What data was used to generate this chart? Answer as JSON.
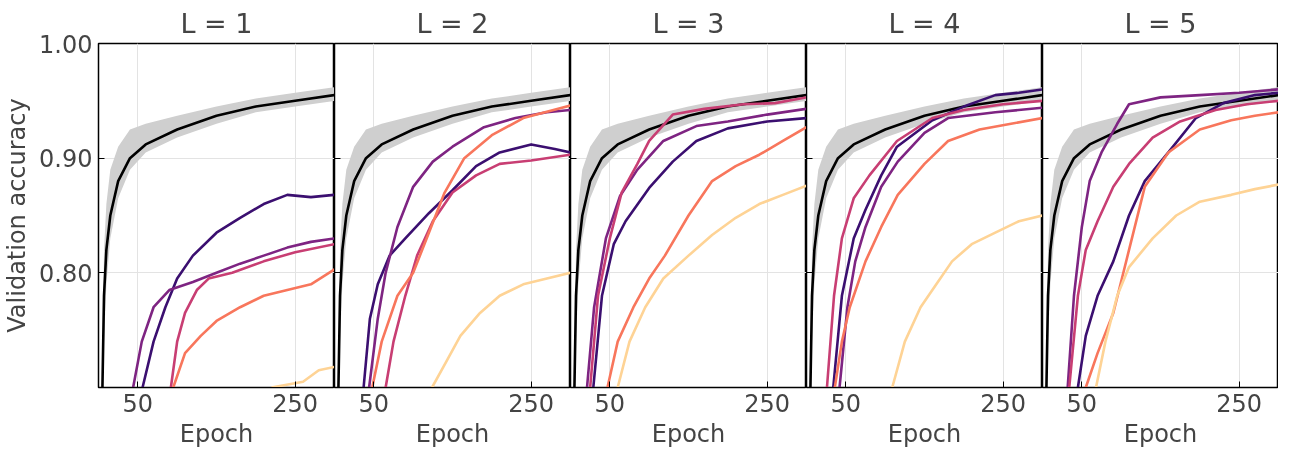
{
  "chart_data": [
    {
      "type": "line",
      "title": "L = 1",
      "xlabel": "Epoch",
      "ylabel": "Validation accuracy",
      "xlim": [
        0,
        300
      ],
      "xticks": [
        50,
        250
      ],
      "ylim": [
        0.7,
        1.0
      ],
      "yticks": [
        {
          "value": 0.8,
          "label": "0.80"
        },
        {
          "value": 0.9,
          "label": "0.90"
        },
        {
          "value": 1.0,
          "label": "1.00"
        }
      ],
      "grid": true,
      "series": [
        {
          "color": "#000000",
          "x": [
            5,
            7,
            10,
            15,
            25,
            40,
            60,
            100,
            150,
            200,
            250,
            300
          ],
          "values": [
            0.7,
            0.78,
            0.82,
            0.85,
            0.88,
            0.9,
            0.912,
            0.925,
            0.937,
            0.945,
            0.95,
            0.955
          ],
          "lower": [
            0.7,
            0.74,
            0.79,
            0.83,
            0.865,
            0.89,
            0.905,
            0.918,
            0.93,
            0.94,
            0.945,
            0.95
          ],
          "upper": [
            0.72,
            0.82,
            0.86,
            0.89,
            0.91,
            0.925,
            0.93,
            0.937,
            0.945,
            0.952,
            0.957,
            0.962
          ]
        },
        {
          "color": "#3b0f70",
          "x": [
            56,
            70,
            85,
            100,
            120,
            150,
            180,
            210,
            240,
            270,
            300
          ],
          "values": [
            0.7,
            0.74,
            0.77,
            0.795,
            0.815,
            0.835,
            0.848,
            0.86,
            0.868,
            0.866,
            0.868
          ]
        },
        {
          "color": "#7e2482",
          "x": [
            44,
            55,
            70,
            90,
            120,
            150,
            180,
            210,
            240,
            270,
            300
          ],
          "values": [
            0.7,
            0.74,
            0.77,
            0.785,
            0.792,
            0.8,
            0.808,
            0.815,
            0.822,
            0.827,
            0.83
          ]
        },
        {
          "color": "#c83e73",
          "x": [
            92,
            100,
            110,
            125,
            140,
            170,
            210,
            250,
            300
          ],
          "values": [
            0.7,
            0.74,
            0.765,
            0.785,
            0.795,
            0.8,
            0.81,
            0.818,
            0.825
          ]
        },
        {
          "color": "#f8765c",
          "x": [
            95,
            110,
            130,
            150,
            180,
            210,
            240,
            270,
            300
          ],
          "values": [
            0.7,
            0.73,
            0.745,
            0.758,
            0.77,
            0.78,
            0.785,
            0.79,
            0.803
          ]
        },
        {
          "color": "#fed395",
          "x": [
            220,
            260,
            280,
            300
          ],
          "values": [
            0.7,
            0.705,
            0.715,
            0.718
          ]
        }
      ]
    },
    {
      "type": "line",
      "title": "L = 2",
      "xlabel": "Epoch",
      "xlim": [
        0,
        300
      ],
      "xticks": [
        50,
        250
      ],
      "ylim": [
        0.7,
        1.0
      ],
      "yticks": [
        0.8,
        0.9,
        1.0
      ],
      "grid": true,
      "tick_labels": "x",
      "series": [
        {
          "color": "#000000",
          "x": [
            5,
            7,
            10,
            15,
            25,
            40,
            60,
            100,
            150,
            200,
            250,
            300
          ],
          "values": [
            0.7,
            0.78,
            0.82,
            0.85,
            0.88,
            0.9,
            0.912,
            0.925,
            0.937,
            0.945,
            0.95,
            0.955
          ],
          "lower": [
            0.7,
            0.74,
            0.79,
            0.83,
            0.865,
            0.89,
            0.905,
            0.918,
            0.93,
            0.94,
            0.945,
            0.95
          ],
          "upper": [
            0.72,
            0.82,
            0.86,
            0.89,
            0.91,
            0.925,
            0.93,
            0.937,
            0.945,
            0.952,
            0.957,
            0.962
          ]
        },
        {
          "color": "#3b0f70",
          "x": [
            37,
            45,
            55,
            70,
            90,
            120,
            150,
            180,
            210,
            250,
            280,
            300
          ],
          "values": [
            0.7,
            0.76,
            0.79,
            0.815,
            0.83,
            0.852,
            0.872,
            0.893,
            0.905,
            0.912,
            0.908,
            0.905
          ]
        },
        {
          "color": "#7e2482",
          "x": [
            44,
            55,
            65,
            80,
            100,
            125,
            150,
            190,
            230,
            270,
            300
          ],
          "values": [
            0.7,
            0.76,
            0.8,
            0.84,
            0.875,
            0.897,
            0.91,
            0.927,
            0.935,
            0.94,
            0.942
          ]
        },
        {
          "color": "#c83e73",
          "x": [
            65,
            75,
            90,
            105,
            125,
            150,
            180,
            210,
            250,
            300
          ],
          "values": [
            0.7,
            0.74,
            0.78,
            0.815,
            0.845,
            0.87,
            0.885,
            0.895,
            0.898,
            0.903
          ]
        },
        {
          "color": "#f8765c",
          "x": [
            48,
            60,
            80,
            100,
            120,
            140,
            165,
            200,
            240,
            300
          ],
          "values": [
            0.7,
            0.74,
            0.78,
            0.8,
            0.835,
            0.87,
            0.9,
            0.92,
            0.935,
            0.946
          ]
        },
        {
          "color": "#fed395",
          "x": [
            124,
            140,
            160,
            185,
            210,
            240,
            270,
            300
          ],
          "values": [
            0.7,
            0.72,
            0.745,
            0.765,
            0.78,
            0.79,
            0.795,
            0.8
          ]
        }
      ]
    },
    {
      "type": "line",
      "title": "L = 3",
      "xlabel": "Epoch",
      "xlim": [
        0,
        300
      ],
      "xticks": [
        50,
        250
      ],
      "ylim": [
        0.7,
        1.0
      ],
      "yticks": [
        0.8,
        0.9,
        1.0
      ],
      "grid": true,
      "tick_labels": "x",
      "series": [
        {
          "color": "#000000",
          "x": [
            5,
            7,
            10,
            15,
            25,
            40,
            60,
            100,
            150,
            200,
            250,
            300
          ],
          "values": [
            0.7,
            0.78,
            0.82,
            0.85,
            0.88,
            0.9,
            0.912,
            0.925,
            0.937,
            0.945,
            0.95,
            0.955
          ],
          "lower": [
            0.7,
            0.74,
            0.79,
            0.83,
            0.865,
            0.89,
            0.905,
            0.918,
            0.93,
            0.94,
            0.945,
            0.95
          ],
          "upper": [
            0.72,
            0.82,
            0.86,
            0.89,
            0.91,
            0.925,
            0.93,
            0.937,
            0.945,
            0.952,
            0.957,
            0.962
          ]
        },
        {
          "color": "#3b0f70",
          "x": [
            29,
            40,
            55,
            70,
            100,
            130,
            160,
            200,
            250,
            300
          ],
          "values": [
            0.7,
            0.78,
            0.825,
            0.845,
            0.874,
            0.897,
            0.915,
            0.926,
            0.932,
            0.935
          ]
        },
        {
          "color": "#7e2482",
          "x": [
            21,
            30,
            45,
            63,
            85,
            118,
            160,
            200,
            250,
            300
          ],
          "values": [
            0.7,
            0.77,
            0.83,
            0.867,
            0.89,
            0.915,
            0.928,
            0.932,
            0.938,
            0.943
          ]
        },
        {
          "color": "#c83e73",
          "x": [
            25,
            35,
            50,
            65,
            85,
            100,
            130,
            170,
            220,
            260,
            300
          ],
          "values": [
            0.7,
            0.78,
            0.83,
            0.87,
            0.895,
            0.915,
            0.938,
            0.943,
            0.947,
            0.948,
            0.953
          ]
        },
        {
          "color": "#f8765c",
          "x": [
            47,
            60,
            80,
            100,
            120,
            150,
            180,
            210,
            240,
            270,
            300
          ],
          "values": [
            0.7,
            0.74,
            0.77,
            0.795,
            0.815,
            0.85,
            0.88,
            0.893,
            0.903,
            0.915,
            0.927
          ]
        },
        {
          "color": "#fed395",
          "x": [
            60,
            75,
            95,
            118,
            150,
            180,
            210,
            240,
            270,
            300
          ],
          "values": [
            0.7,
            0.74,
            0.77,
            0.795,
            0.815,
            0.833,
            0.848,
            0.86,
            0.868,
            0.876
          ]
        }
      ]
    },
    {
      "type": "line",
      "title": "L = 4",
      "xlabel": "Epoch",
      "xlim": [
        0,
        300
      ],
      "xticks": [
        50,
        250
      ],
      "ylim": [
        0.7,
        1.0
      ],
      "yticks": [
        0.8,
        0.9,
        1.0
      ],
      "grid": true,
      "tick_labels": "x",
      "series": [
        {
          "color": "#000000",
          "x": [
            5,
            7,
            10,
            15,
            25,
            40,
            60,
            100,
            150,
            200,
            250,
            300
          ],
          "values": [
            0.7,
            0.78,
            0.82,
            0.85,
            0.88,
            0.9,
            0.912,
            0.925,
            0.937,
            0.945,
            0.95,
            0.955
          ],
          "lower": [
            0.7,
            0.74,
            0.79,
            0.83,
            0.865,
            0.89,
            0.905,
            0.918,
            0.93,
            0.94,
            0.945,
            0.95
          ],
          "upper": [
            0.72,
            0.82,
            0.86,
            0.89,
            0.91,
            0.925,
            0.93,
            0.937,
            0.945,
            0.952,
            0.957,
            0.962
          ]
        },
        {
          "color": "#3b0f70",
          "x": [
            34,
            45,
            60,
            75,
            95,
            115,
            160,
            200,
            240,
            270,
            300
          ],
          "values": [
            0.7,
            0.78,
            0.83,
            0.855,
            0.885,
            0.91,
            0.933,
            0.945,
            0.955,
            0.957,
            0.96
          ]
        },
        {
          "color": "#7e2482",
          "x": [
            42,
            52,
            62,
            75,
            95,
            116,
            150,
            180,
            240,
            300
          ],
          "values": [
            0.7,
            0.77,
            0.81,
            0.84,
            0.875,
            0.897,
            0.922,
            0.935,
            0.94,
            0.944
          ]
        },
        {
          "color": "#c83e73",
          "x": [
            26,
            35,
            45,
            60,
            80,
            115,
            160,
            200,
            250,
            300
          ],
          "values": [
            0.7,
            0.78,
            0.83,
            0.865,
            0.885,
            0.915,
            0.935,
            0.942,
            0.947,
            0.95
          ]
        },
        {
          "color": "#f8765c",
          "x": [
            36,
            45,
            55,
            75,
            95,
            116,
            150,
            180,
            220,
            260,
            300
          ],
          "values": [
            0.7,
            0.74,
            0.77,
            0.81,
            0.84,
            0.868,
            0.895,
            0.915,
            0.925,
            0.93,
            0.935
          ]
        },
        {
          "color": "#fed395",
          "x": [
            109,
            125,
            145,
            165,
            185,
            210,
            240,
            270,
            300
          ],
          "values": [
            0.7,
            0.74,
            0.77,
            0.79,
            0.81,
            0.825,
            0.835,
            0.845,
            0.85
          ]
        }
      ]
    },
    {
      "type": "line",
      "title": "L = 5",
      "xlabel": "Epoch",
      "xlim": [
        0,
        300
      ],
      "xticks": [
        50,
        250
      ],
      "ylim": [
        0.7,
        1.0
      ],
      "yticks": [
        0.8,
        0.9,
        1.0
      ],
      "grid": true,
      "tick_labels": "x",
      "series": [
        {
          "color": "#000000",
          "x": [
            5,
            7,
            10,
            15,
            25,
            40,
            60,
            100,
            150,
            200,
            250,
            300
          ],
          "values": [
            0.7,
            0.78,
            0.82,
            0.85,
            0.88,
            0.9,
            0.912,
            0.925,
            0.937,
            0.945,
            0.95,
            0.955
          ],
          "lower": [
            0.7,
            0.74,
            0.79,
            0.83,
            0.865,
            0.89,
            0.905,
            0.918,
            0.93,
            0.94,
            0.945,
            0.95
          ],
          "upper": [
            0.72,
            0.82,
            0.86,
            0.89,
            0.91,
            0.925,
            0.93,
            0.937,
            0.945,
            0.952,
            0.957,
            0.962
          ]
        },
        {
          "color": "#3b0f70",
          "x": [
            45,
            55,
            70,
            90,
            110,
            130,
            160,
            195,
            230,
            270,
            300
          ],
          "values": [
            0.7,
            0.745,
            0.78,
            0.81,
            0.85,
            0.88,
            0.905,
            0.935,
            0.948,
            0.955,
            0.957
          ]
        },
        {
          "color": "#7e2482",
          "x": [
            32,
            40,
            50,
            60,
            75,
            95,
            110,
            150,
            200,
            250,
            300
          ],
          "values": [
            0.7,
            0.78,
            0.84,
            0.88,
            0.905,
            0.93,
            0.947,
            0.953,
            0.955,
            0.957,
            0.96
          ]
        },
        {
          "color": "#c83e73",
          "x": [
            34,
            45,
            55,
            70,
            90,
            110,
            140,
            175,
            220,
            260,
            300
          ],
          "values": [
            0.7,
            0.78,
            0.82,
            0.845,
            0.875,
            0.895,
            0.918,
            0.932,
            0.942,
            0.947,
            0.95
          ]
        },
        {
          "color": "#f8765c",
          "x": [
            55,
            70,
            90,
            110,
            130,
            160,
            200,
            240,
            270,
            300
          ],
          "values": [
            0.7,
            0.73,
            0.765,
            0.82,
            0.875,
            0.905,
            0.925,
            0.933,
            0.937,
            0.94
          ]
        },
        {
          "color": "#fed395",
          "x": [
            68,
            80,
            95,
            110,
            140,
            170,
            200,
            240,
            270,
            300
          ],
          "values": [
            0.7,
            0.74,
            0.78,
            0.805,
            0.83,
            0.85,
            0.862,
            0.868,
            0.873,
            0.877
          ]
        }
      ]
    }
  ]
}
